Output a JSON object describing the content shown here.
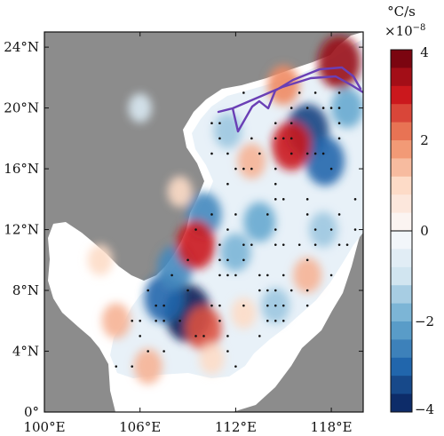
{
  "chart_data": {
    "type": "heatmap",
    "xlim": [
      100,
      120
    ],
    "ylim": [
      0,
      25
    ],
    "x_ticks": [
      {
        "value": 100,
        "label": "100°E"
      },
      {
        "value": 106,
        "label": "106°E"
      },
      {
        "value": 112,
        "label": "112°E"
      },
      {
        "value": 118,
        "label": "118°E"
      }
    ],
    "y_ticks": [
      {
        "value": 0,
        "label": "0°"
      },
      {
        "value": 4,
        "label": "4°N"
      },
      {
        "value": 8,
        "label": "8°N"
      },
      {
        "value": 12,
        "label": "12°N"
      },
      {
        "value": 16,
        "label": "16°N"
      },
      {
        "value": 20,
        "label": "20°N"
      },
      {
        "value": 24,
        "label": "24°N"
      }
    ],
    "colorbar": {
      "unit": "°C/s",
      "multiplier": "×10",
      "exponent": "−8",
      "range": [
        -4,
        4
      ],
      "levels": 20,
      "ticks": [
        {
          "value": 4,
          "label": "4"
        },
        {
          "value": 2,
          "label": "2"
        },
        {
          "value": 0,
          "label": "0"
        },
        {
          "value": -2,
          "label": "−2"
        },
        {
          "value": -4,
          "label": "−4"
        }
      ]
    },
    "colors": {
      "land": "#8c8c8c",
      "shelf": "#ffffff",
      "track": "#6a3fb5",
      "dots": "#111111"
    },
    "features": [
      {
        "lon": 116.5,
        "lat": 18.5,
        "value": -3.5
      },
      {
        "lon": 117.6,
        "lat": 16.5,
        "value": -3.0
      },
      {
        "lon": 115.5,
        "lat": 17.5,
        "value": 3.0
      },
      {
        "lon": 109.0,
        "lat": 6.5,
        "value": -4.0
      },
      {
        "lon": 107.5,
        "lat": 7.5,
        "value": -3.0
      },
      {
        "lon": 108.2,
        "lat": 9.5,
        "value": -2.5
      },
      {
        "lon": 110.0,
        "lat": 13.0,
        "value": -2.5
      },
      {
        "lon": 109.5,
        "lat": 11.0,
        "value": 3.0
      },
      {
        "lon": 113.5,
        "lat": 12.5,
        "value": -2.0
      },
      {
        "lon": 112.0,
        "lat": 10.5,
        "value": -1.8
      },
      {
        "lon": 110.0,
        "lat": 5.5,
        "value": 2.5
      },
      {
        "lon": 104.5,
        "lat": 6.0,
        "value": 1.5
      },
      {
        "lon": 103.5,
        "lat": 10.0,
        "value": 1.0
      },
      {
        "lon": 111.5,
        "lat": 18.5,
        "value": -1.5
      },
      {
        "lon": 113.0,
        "lat": 16.5,
        "value": 1.5
      },
      {
        "lon": 118.5,
        "lat": 23.0,
        "value": 3.5
      },
      {
        "lon": 115.0,
        "lat": 21.5,
        "value": 2.0
      },
      {
        "lon": 116.5,
        "lat": 9.0,
        "value": 1.5
      },
      {
        "lon": 114.5,
        "lat": 7.0,
        "value": -1.5
      },
      {
        "lon": 106.5,
        "lat": 3.0,
        "value": 1.5
      },
      {
        "lon": 110.5,
        "lat": 3.5,
        "value": 1.0
      },
      {
        "lon": 117.5,
        "lat": 12.0,
        "value": -1.5
      },
      {
        "lon": 112.5,
        "lat": 6.5,
        "value": 1.0
      },
      {
        "lon": 108.5,
        "lat": 14.5,
        "value": 1.0
      },
      {
        "lon": 106.0,
        "lat": 20.0,
        "value": -0.8
      },
      {
        "lon": 119.0,
        "lat": 20.0,
        "value": -2.0
      }
    ]
  }
}
